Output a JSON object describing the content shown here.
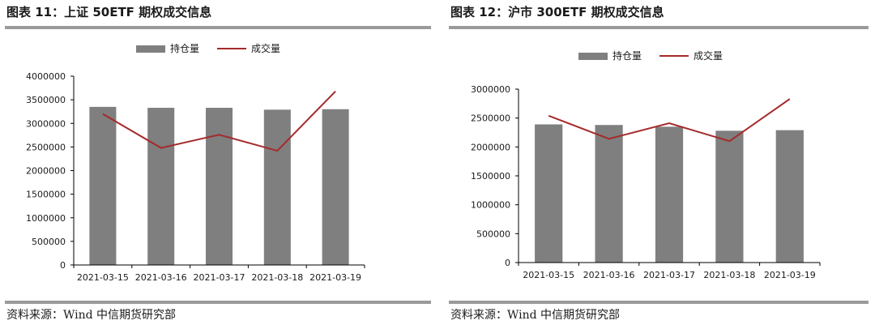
{
  "source_label": "资料来源：Wind 中信期货研究部",
  "charts": [
    {
      "title": "图表 11：上证 50ETF 期权成交信息",
      "legend": {
        "bar": "持仓量",
        "line": "成交量"
      },
      "colors": {
        "bar": "#7f7f7f",
        "line": "#a52a2a",
        "axis": "#000000"
      }
    },
    {
      "title": "图表 12：沪市 300ETF 期权成交信息",
      "legend": {
        "bar": "持仓量",
        "line": "成交量"
      },
      "colors": {
        "bar": "#7f7f7f",
        "line": "#a52a2a",
        "axis": "#000000"
      }
    }
  ],
  "chart_data": [
    {
      "type": "bar",
      "categories": [
        "2021-03-15",
        "2021-03-16",
        "2021-03-17",
        "2021-03-18",
        "2021-03-19"
      ],
      "series": [
        {
          "name": "持仓量",
          "type": "bar",
          "values": [
            3350000,
            3330000,
            3330000,
            3290000,
            3300000
          ]
        },
        {
          "name": "成交量",
          "type": "line",
          "values": [
            3200000,
            2480000,
            2760000,
            2420000,
            3680000
          ]
        }
      ],
      "ylim": [
        0,
        4000000
      ],
      "yticks": [
        0,
        500000,
        1000000,
        1500000,
        2000000,
        2500000,
        3000000,
        3500000,
        4000000
      ],
      "legend_position": "top",
      "grid": false
    },
    {
      "type": "bar",
      "categories": [
        "2021-03-15",
        "2021-03-16",
        "2021-03-17",
        "2021-03-18",
        "2021-03-19"
      ],
      "series": [
        {
          "name": "持仓量",
          "type": "bar",
          "values": [
            2390000,
            2380000,
            2350000,
            2280000,
            2290000
          ]
        },
        {
          "name": "成交量",
          "type": "line",
          "values": [
            2540000,
            2140000,
            2410000,
            2100000,
            2830000
          ]
        }
      ],
      "ylim": [
        0,
        3000000
      ],
      "yticks": [
        0,
        500000,
        1000000,
        1500000,
        2000000,
        2500000,
        3000000
      ],
      "legend_position": "top",
      "grid": false
    }
  ]
}
